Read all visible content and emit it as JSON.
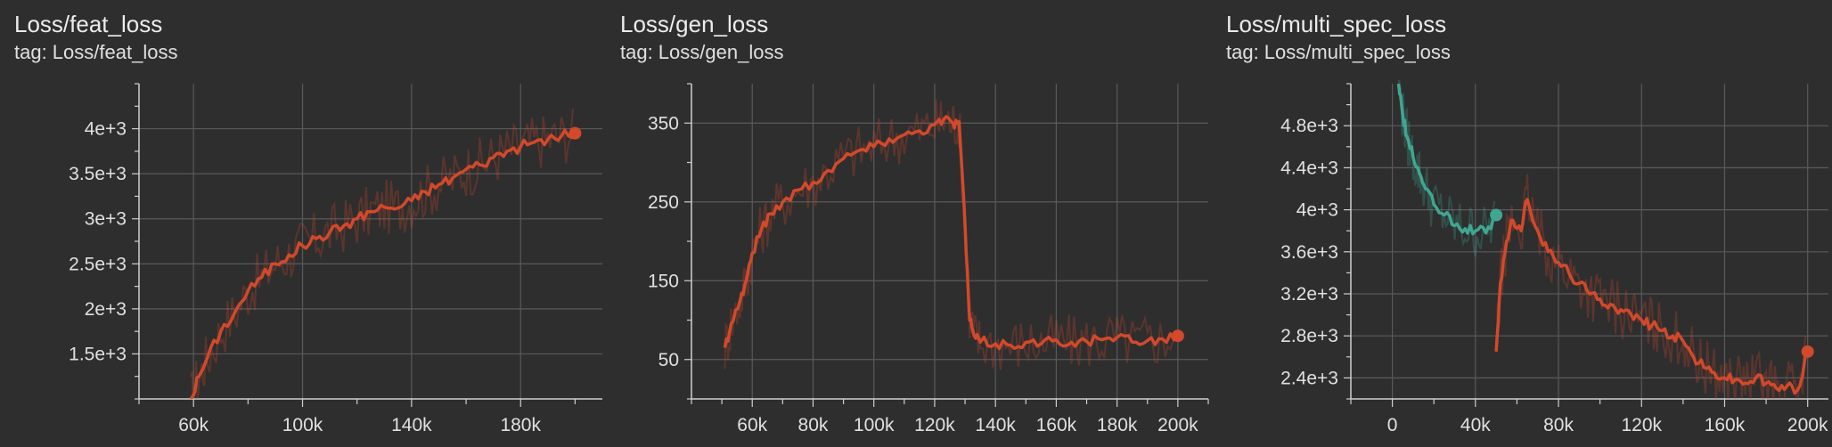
{
  "panels": [
    {
      "title": "Loss/feat_loss",
      "tag": "tag: Loss/feat_loss",
      "chart_data": {
        "type": "line",
        "xlim": [
          40000,
          210000
        ],
        "ylim": [
          1000,
          4500
        ],
        "x_ticks": [
          60000,
          100000,
          140000,
          180000
        ],
        "x_tick_labels": [
          "60k",
          "100k",
          "140k",
          "180k"
        ],
        "y_ticks": [
          1500,
          2000,
          2500,
          3000,
          3500,
          4000
        ],
        "y_tick_labels": [
          "1.5e+3",
          "2e+3",
          "2.5e+3",
          "3e+3",
          "3.5e+3",
          "4e+3"
        ],
        "grid": true,
        "series": [
          {
            "color": "#d2492b",
            "x": [
              59000,
              62000,
              65000,
              70000,
              75000,
              80000,
              85000,
              90000,
              95000,
              100000,
              105000,
              110000,
              115000,
              120000,
              125000,
              130000,
              135000,
              140000,
              145000,
              150000,
              155000,
              160000,
              165000,
              170000,
              175000,
              180000,
              185000,
              190000,
              195000,
              200000
            ],
            "y": [
              1000,
              1250,
              1450,
              1750,
              1950,
              2200,
              2350,
              2500,
              2600,
              2700,
              2780,
              2850,
              2920,
              3000,
              3080,
              3130,
              3120,
              3200,
              3300,
              3380,
              3450,
              3550,
              3600,
              3680,
              3750,
              3800,
              3850,
              3880,
              3920,
              3950
            ]
          }
        ]
      }
    },
    {
      "title": "Loss/gen_loss",
      "tag": "tag: Loss/gen_loss",
      "chart_data": {
        "type": "line",
        "xlim": [
          40000,
          210000
        ],
        "ylim": [
          0,
          400
        ],
        "x_ticks": [
          60000,
          80000,
          100000,
          120000,
          140000,
          160000,
          180000,
          200000
        ],
        "x_tick_labels": [
          "60k",
          "80k",
          "100k",
          "120k",
          "140k",
          "160k",
          "180k",
          "200k"
        ],
        "y_ticks": [
          50,
          150,
          250,
          350
        ],
        "y_tick_labels": [
          "50",
          "150",
          "250",
          "350"
        ],
        "grid": true,
        "series": [
          {
            "color": "#d2492b",
            "x": [
              51000,
              53000,
              56000,
              58000,
              60000,
              63000,
              66000,
              70000,
              75000,
              80000,
              85000,
              90000,
              95000,
              100000,
              105000,
              110000,
              115000,
              120000,
              123000,
              126000,
              128000,
              130000,
              131500,
              133000,
              135000,
              140000,
              145000,
              150000,
              155000,
              160000,
              165000,
              170000,
              175000,
              180000,
              185000,
              190000,
              195000,
              200000
            ],
            "y": [
              65,
              95,
              125,
              150,
              185,
              215,
              235,
              250,
              265,
              275,
              290,
              305,
              315,
              320,
              330,
              335,
              340,
              348,
              355,
              350,
              352,
              220,
              100,
              80,
              72,
              70,
              68,
              72,
              70,
              75,
              72,
              73,
              75,
              78,
              72,
              74,
              76,
              80
            ]
          }
        ]
      }
    },
    {
      "title": "Loss/multi_spec_loss",
      "tag": "tag: Loss/multi_spec_loss",
      "chart_data": {
        "type": "line",
        "xlim": [
          -20000,
          210000
        ],
        "ylim": [
          2200,
          5200
        ],
        "x_ticks": [
          0,
          40000,
          80000,
          120000,
          160000,
          200000
        ],
        "x_tick_labels": [
          "0",
          "40k",
          "80k",
          "120k",
          "160k",
          "200k"
        ],
        "y_ticks": [
          2400,
          2800,
          3200,
          3600,
          4000,
          4400,
          4800
        ],
        "y_tick_labels": [
          "2.4e+3",
          "2.8e+3",
          "3.2e+3",
          "3.6e+3",
          "4e+3",
          "4.4e+3",
          "4.8e+3"
        ],
        "grid": true,
        "series": [
          {
            "color": "#3fa692",
            "x": [
              3000,
              5000,
              7000,
              10000,
              13000,
              16000,
              20000,
              25000,
              30000,
              35000,
              40000,
              45000,
              50000
            ],
            "y": [
              5200,
              4900,
              4700,
              4500,
              4350,
              4200,
              4050,
              3950,
              3850,
              3820,
              3800,
              3780,
              3950
            ]
          },
          {
            "color": "#d2492b",
            "x": [
              50000,
              52000,
              55000,
              58000,
              62000,
              65000,
              70000,
              75000,
              80000,
              85000,
              90000,
              95000,
              100000,
              105000,
              110000,
              115000,
              120000,
              125000,
              130000,
              135000,
              140000,
              145000,
              150000,
              155000,
              160000,
              165000,
              170000,
              175000,
              180000,
              185000,
              190000,
              195000,
              200000
            ],
            "y": [
              2650,
              3300,
              3700,
              3900,
              3800,
              4100,
              3800,
              3600,
              3500,
              3400,
              3300,
              3200,
              3150,
              3100,
              3050,
              3000,
              2950,
              2900,
              2850,
              2800,
              2750,
              2600,
              2500,
              2450,
              2400,
              2380,
              2350,
              2400,
              2350,
              2300,
              2320,
              2280,
              2650
            ]
          }
        ]
      }
    }
  ]
}
